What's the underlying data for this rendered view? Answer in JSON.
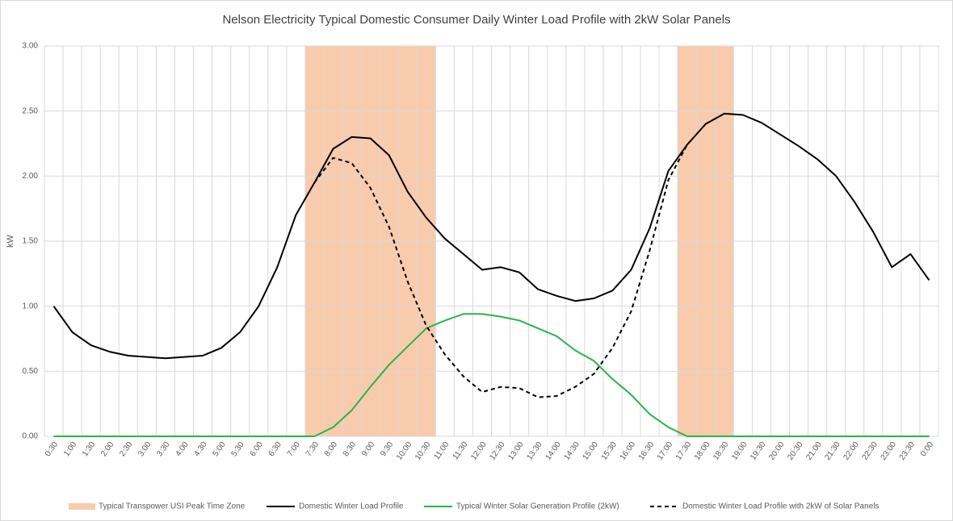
{
  "chart_data": {
    "type": "line",
    "title": "Nelson Electricity Typical Domestic Consumer Daily Winter Load Profile with 2kW Solar Panels",
    "ylabel": "kW",
    "categories": [
      "0:30",
      "1:00",
      "1:30",
      "2:00",
      "2:30",
      "3:00",
      "3:30",
      "4:00",
      "4:30",
      "5:00",
      "5:30",
      "6:00",
      "6:30",
      "7:00",
      "7:30",
      "8:00",
      "8:30",
      "9:00",
      "9:30",
      "10:00",
      "10:30",
      "11:00",
      "11:30",
      "12:00",
      "12:30",
      "13:00",
      "13:30",
      "14:00",
      "14:30",
      "15:00",
      "15:30",
      "16:00",
      "16:30",
      "17:00",
      "17:30",
      "18:00",
      "18:30",
      "19:00",
      "19:30",
      "20:00",
      "20:30",
      "21:00",
      "21:30",
      "22:00",
      "22:30",
      "23:00",
      "23:30",
      "0:00"
    ],
    "peak_zone": {
      "name": "Typical Transpower USI Peak Time Zone",
      "color": "#f8cbad",
      "ranges": [
        [
          "7:30",
          "10:30"
        ],
        [
          "17:30",
          "18:30"
        ]
      ]
    },
    "series": [
      {
        "name": "Domestic Winter Load Profile",
        "color": "#000000",
        "dashed": false,
        "values": [
          1.0,
          0.8,
          0.7,
          0.65,
          0.62,
          0.61,
          0.6,
          0.61,
          0.62,
          0.68,
          0.8,
          1.0,
          1.3,
          1.7,
          1.95,
          2.21,
          2.3,
          2.29,
          2.16,
          1.88,
          1.68,
          1.52,
          1.4,
          1.28,
          1.3,
          1.26,
          1.13,
          1.08,
          1.04,
          1.06,
          1.12,
          1.28,
          1.6,
          2.04,
          2.24,
          2.4,
          2.48,
          2.47,
          2.41,
          2.32,
          2.23,
          2.13,
          2.0,
          1.8,
          1.57,
          1.3,
          1.4,
          1.2
        ]
      },
      {
        "name": "Typical Winter Solar Generation Profile (2kW)",
        "color": "#2db34a",
        "dashed": false,
        "values": [
          0,
          0,
          0,
          0,
          0,
          0,
          0,
          0,
          0,
          0,
          0,
          0,
          0,
          0,
          0,
          0.07,
          0.2,
          0.38,
          0.55,
          0.69,
          0.83,
          0.89,
          0.94,
          0.94,
          0.92,
          0.89,
          0.83,
          0.77,
          0.66,
          0.58,
          0.44,
          0.32,
          0.17,
          0.07,
          0,
          0,
          0,
          0,
          0,
          0,
          0,
          0,
          0,
          0,
          0,
          0,
          0,
          0
        ]
      },
      {
        "name": "Domestic Winter Load Profile with 2kW of Solar Panels",
        "color": "#000000",
        "dashed": true,
        "values": [
          null,
          null,
          null,
          null,
          null,
          null,
          null,
          null,
          null,
          null,
          null,
          null,
          null,
          null,
          1.95,
          2.14,
          2.1,
          1.91,
          1.61,
          1.19,
          0.85,
          0.63,
          0.46,
          0.34,
          0.38,
          0.37,
          0.3,
          0.31,
          0.38,
          0.48,
          0.68,
          0.96,
          1.43,
          1.97,
          2.24,
          null,
          null,
          null,
          null,
          null,
          null,
          null,
          null,
          null,
          null,
          null,
          null,
          null
        ]
      }
    ],
    "ylim": [
      0,
      3
    ],
    "yticks": [
      {
        "value": 0,
        "label": "0.00"
      },
      {
        "value": 0.5,
        "label": "0.50"
      },
      {
        "value": 1,
        "label": "1.00"
      },
      {
        "value": 1.5,
        "label": "1.50"
      },
      {
        "value": 2,
        "label": "2.00"
      },
      {
        "value": 2.5,
        "label": "2.50"
      },
      {
        "value": 3,
        "label": "3.00"
      }
    ],
    "grid": true,
    "legend": "bottom"
  }
}
